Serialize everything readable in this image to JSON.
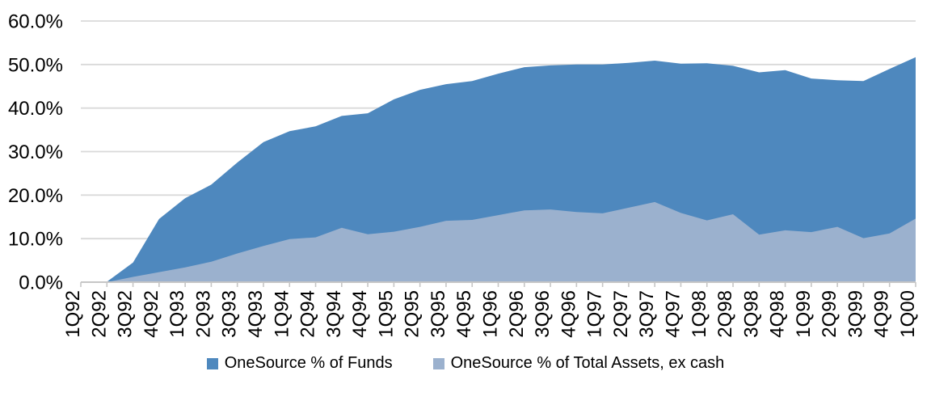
{
  "chart_data": {
    "type": "area",
    "stacking": "overlapped",
    "title": "",
    "xlabel": "",
    "ylabel": "",
    "categories": [
      "1Q92",
      "2Q92",
      "3Q92",
      "4Q92",
      "1Q93",
      "2Q93",
      "3Q93",
      "4Q93",
      "1Q94",
      "2Q94",
      "3Q94",
      "4Q94",
      "1Q95",
      "2Q95",
      "3Q95",
      "4Q95",
      "1Q96",
      "2Q96",
      "3Q96",
      "4Q96",
      "1Q97",
      "2Q97",
      "3Q97",
      "4Q97",
      "1Q98",
      "2Q98",
      "3Q98",
      "4Q98",
      "1Q99",
      "2Q99",
      "3Q99",
      "4Q99",
      "1Q00"
    ],
    "series": [
      {
        "name": "OneSource % of Funds",
        "color": "#4E88BE",
        "values": [
          0.0,
          0.1,
          4.5,
          14.5,
          19.3,
          22.4,
          27.5,
          32.2,
          34.7,
          35.8,
          38.2,
          38.8,
          42.0,
          44.2,
          45.5,
          46.2,
          47.9,
          49.4,
          49.8,
          50.0,
          50.0,
          50.4,
          50.9,
          50.2,
          50.3,
          49.7,
          48.2,
          48.7,
          46.8,
          46.4,
          46.2,
          49.0,
          51.7
        ]
      },
      {
        "name": "OneSource % of Total Assets, ex cash",
        "color": "#9BB1CE",
        "values": [
          0.0,
          0.0,
          1.2,
          2.3,
          3.4,
          4.7,
          6.6,
          8.3,
          9.9,
          10.3,
          12.5,
          11.0,
          11.6,
          12.7,
          14.1,
          14.3,
          15.4,
          16.5,
          16.7,
          16.1,
          15.8,
          17.1,
          18.4,
          15.9,
          14.2,
          15.6,
          10.9,
          11.9,
          11.5,
          12.7,
          10.1,
          11.2,
          14.6
        ]
      }
    ],
    "ylim": [
      0,
      60
    ],
    "y_ticks": [
      "0.0%",
      "10.0%",
      "20.0%",
      "30.0%",
      "40.0%",
      "50.0%",
      "60.0%"
    ],
    "grid": "horizontal",
    "gridline_color": "#D9D9D9",
    "axis_color": "#C6C6C6",
    "text_color": "#000000",
    "legend_position": "bottom",
    "x_label_rotation": -90
  }
}
